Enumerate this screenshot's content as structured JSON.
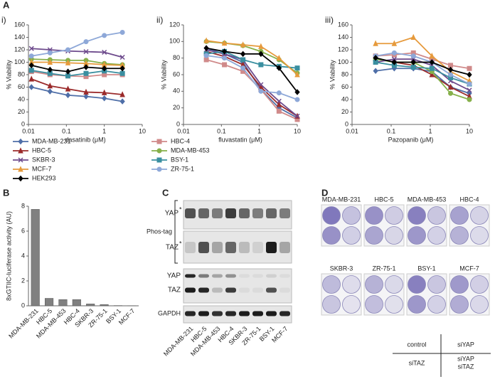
{
  "panel_labels": [
    "A",
    "B",
    "C",
    "D"
  ],
  "chart_data": [
    {
      "type": "line",
      "label": "i)",
      "x_label": "dasatinib (μM)",
      "y_label": "% Viability",
      "xscale": "log",
      "x": [
        0.012,
        0.037,
        0.11,
        0.33,
        1,
        3
      ],
      "xlim": [
        0.01,
        10
      ],
      "xticks": [
        0.01,
        0.1,
        1,
        10
      ],
      "ylim": [
        0,
        160
      ],
      "yticks": [
        0,
        20,
        40,
        60,
        80,
        100,
        120,
        140,
        160
      ],
      "series": [
        {
          "name": "MDA-MB-231",
          "color": "#4f6fa8",
          "marker": "diamond",
          "values": [
            60,
            53,
            47,
            45,
            42,
            37
          ]
        },
        {
          "name": "HBC-4",
          "color": "#d08a8a",
          "marker": "square",
          "values": [
            85,
            80,
            78,
            77,
            80,
            80
          ]
        },
        {
          "name": "HBC-5",
          "color": "#9b2b2b",
          "marker": "triangle",
          "values": [
            73,
            62,
            57,
            52,
            51,
            48
          ]
        },
        {
          "name": "MDA-MB-453",
          "color": "#86b04a",
          "marker": "circle",
          "values": [
            105,
            104,
            103,
            103,
            98,
            96
          ]
        },
        {
          "name": "SKBR-3",
          "color": "#6d4a8c",
          "marker": "x",
          "values": [
            122,
            120,
            118,
            117,
            116,
            108
          ]
        },
        {
          "name": "BSY-1",
          "color": "#3a8fa0",
          "marker": "square",
          "values": [
            87,
            82,
            78,
            82,
            86,
            82
          ]
        },
        {
          "name": "MCF-7",
          "color": "#e69a3c",
          "marker": "triangle",
          "values": [
            100,
            100,
            99,
            98,
            96,
            95
          ]
        },
        {
          "name": "ZR-75-1",
          "color": "#8ea8d8",
          "marker": "circle",
          "values": [
            110,
            115,
            120,
            133,
            143,
            148
          ]
        },
        {
          "name": "HEK293",
          "color": "#000000",
          "marker": "diamond",
          "values": [
            95,
            88,
            85,
            92,
            90,
            90
          ]
        }
      ]
    },
    {
      "type": "line",
      "label": "ii)",
      "x_label": "fluvastatin (μM)",
      "y_label": "% Viability",
      "xscale": "log",
      "x": [
        0.04,
        0.12,
        0.37,
        1.1,
        3.3,
        10
      ],
      "xlim": [
        0.01,
        10
      ],
      "xticks": [
        0.01,
        0.1,
        1,
        10
      ],
      "ylim": [
        0,
        120
      ],
      "yticks": [
        0,
        20,
        40,
        60,
        80,
        100,
        120
      ],
      "series": [
        {
          "name": "MDA-MB-231",
          "color": "#4f6fa8",
          "marker": "diamond",
          "values": [
            92,
            85,
            75,
            42,
            20,
            8
          ]
        },
        {
          "name": "HBC-4",
          "color": "#d08a8a",
          "marker": "square",
          "values": [
            78,
            72,
            64,
            42,
            16,
            6
          ]
        },
        {
          "name": "HBC-5",
          "color": "#9b2b2b",
          "marker": "triangle",
          "values": [
            88,
            82,
            72,
            45,
            24,
            10
          ]
        },
        {
          "name": "MDA-MB-453",
          "color": "#86b04a",
          "marker": "circle",
          "values": [
            100,
            98,
            95,
            88,
            78,
            62
          ]
        },
        {
          "name": "SKBR-3",
          "color": "#6d4a8c",
          "marker": "x",
          "values": [
            90,
            85,
            78,
            48,
            28,
            10
          ]
        },
        {
          "name": "BSY-1",
          "color": "#3a8fa0",
          "marker": "square",
          "values": [
            85,
            88,
            78,
            72,
            70,
            68
          ]
        },
        {
          "name": "MCF-7",
          "color": "#e69a3c",
          "marker": "triangle",
          "values": [
            101,
            98,
            96,
            94,
            80,
            60
          ]
        },
        {
          "name": "ZR-75-1",
          "color": "#8ea8d8",
          "marker": "circle",
          "values": [
            83,
            80,
            68,
            40,
            38,
            30
          ]
        },
        {
          "name": "HEK293",
          "color": "#000000",
          "marker": "diamond",
          "values": [
            92,
            88,
            85,
            85,
            68,
            39
          ]
        }
      ]
    },
    {
      "type": "line",
      "label": "iii)",
      "x_label": "Pazopanib (μM)",
      "y_label": "% Viability",
      "xscale": "log",
      "x": [
        0.04,
        0.12,
        0.37,
        1.1,
        3.3,
        10
      ],
      "xlim": [
        0.01,
        10
      ],
      "xticks": [
        0.01,
        0.1,
        1,
        10
      ],
      "ylim": [
        0,
        160
      ],
      "yticks": [
        0,
        20,
        40,
        60,
        80,
        100,
        120,
        140,
        160
      ],
      "series": [
        {
          "name": "MDA-MB-231",
          "color": "#4f6fa8",
          "marker": "diamond",
          "values": [
            86,
            90,
            90,
            85,
            60,
            50
          ]
        },
        {
          "name": "HBC-4",
          "color": "#d08a8a",
          "marker": "square",
          "values": [
            110,
            112,
            115,
            105,
            95,
            90
          ]
        },
        {
          "name": "HBC-5",
          "color": "#9b2b2b",
          "marker": "triangle",
          "values": [
            106,
            100,
            95,
            80,
            60,
            45
          ]
        },
        {
          "name": "MDA-MB-453",
          "color": "#86b04a",
          "marker": "circle",
          "values": [
            105,
            100,
            100,
            85,
            50,
            40
          ]
        },
        {
          "name": "SKBR-3",
          "color": "#6d4a8c",
          "marker": "x",
          "values": [
            100,
            105,
            105,
            95,
            70,
            55
          ]
        },
        {
          "name": "BSY-1",
          "color": "#3a8fa0",
          "marker": "square",
          "values": [
            100,
            95,
            92,
            90,
            75,
            65
          ]
        },
        {
          "name": "MCF-7",
          "color": "#e69a3c",
          "marker": "triangle",
          "values": [
            130,
            130,
            140,
            110,
            85,
            70
          ]
        },
        {
          "name": "ZR-75-1",
          "color": "#8ea8d8",
          "marker": "circle",
          "values": [
            110,
            115,
            110,
            100,
            80,
            65
          ]
        },
        {
          "name": "HEK293",
          "color": "#000000",
          "marker": "diamond",
          "values": [
            107,
            100,
            100,
            100,
            88,
            80
          ]
        }
      ]
    },
    {
      "type": "bar",
      "y_label": "8xGTIIC-luciferase activity (AU)",
      "categories": [
        "MDA-MB-231",
        "HBC-5",
        "MDA-MB-453",
        "HBC-4",
        "SKBR-3",
        "ZR-75-1",
        "BSY-1",
        "MCF-7"
      ],
      "values": [
        7.75,
        0.6,
        0.5,
        0.5,
        0.15,
        0.1,
        0.02,
        0.01
      ],
      "color": "#808080",
      "ylim": [
        0,
        8
      ],
      "yticks": [
        0,
        2,
        4,
        6,
        8
      ]
    }
  ],
  "blot": {
    "phos_tag": {
      "label": "Phos-tag",
      "rows": [
        "YAP",
        "TAZ"
      ],
      "marker": "*"
    },
    "rows": [
      "YAP",
      "TAZ"
    ],
    "loading": "GAPDH",
    "lanes": [
      "MDA-MB-231",
      "HBC-5",
      "MDA-MB-453",
      "HBC-4",
      "SKBR-3",
      "ZR-75-1",
      "BSY-1",
      "MCF-7"
    ]
  },
  "colony": {
    "cell_lines": [
      "MDA-MB-231",
      "HBC-5",
      "MDA-MB-453",
      "HBC-4",
      "SKBR-3",
      "ZR-75-1",
      "BSY-1",
      "MCF-7"
    ],
    "key": [
      [
        "control"
      ],
      [
        "siYAP"
      ],
      [
        "siTAZ"
      ],
      [
        "siYAP",
        "siTAZ"
      ]
    ]
  }
}
